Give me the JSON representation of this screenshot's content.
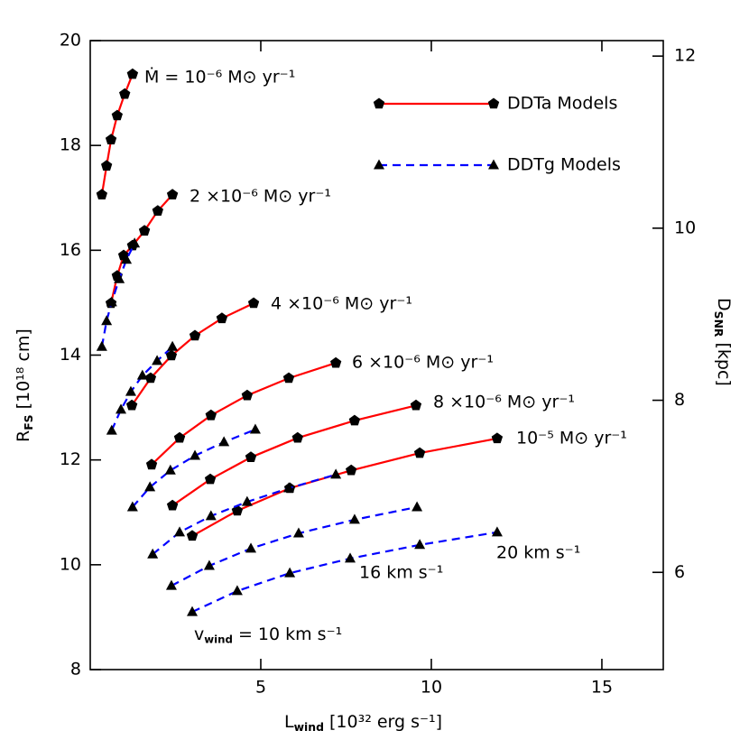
{
  "chart_data": {
    "type": "line",
    "xlabel": {
      "main": "L",
      "sub": "wind",
      "rest": "[10³² erg s⁻¹]"
    },
    "ylabel": {
      "main": "R",
      "sub": "FS",
      "rest": "[10¹⁸ cm]"
    },
    "y2label": {
      "main": "D",
      "sub": "SNR",
      "rest": "[kpc]"
    },
    "xlim": [
      0,
      16.8
    ],
    "xticks": [
      5,
      10,
      15
    ],
    "ylim": [
      8,
      20
    ],
    "yticks": [
      8,
      10,
      12,
      14,
      16,
      18,
      20
    ],
    "y2lim": [
      4.87,
      12.18
    ],
    "y2ticks": [
      6,
      8,
      10,
      12
    ],
    "series": [
      {
        "name": "DDTa Models",
        "color": "#ff0000",
        "marker": "pentagon",
        "dashed": false,
        "curves": [
          {
            "x": [
              0.34,
              0.48,
              0.61,
              0.79,
              1.01,
              1.24
            ],
            "values": [
              17.06,
              17.61,
              18.11,
              18.57,
              18.98,
              19.36
            ]
          },
          {
            "x": [
              0.61,
              0.79,
              0.98,
              1.24,
              1.59,
              1.98,
              2.41
            ],
            "values": [
              14.99,
              15.51,
              15.9,
              16.09,
              16.37,
              16.75,
              17.06
            ]
          },
          {
            "x": [
              1.22,
              1.77,
              2.38,
              3.07,
              3.86,
              4.79
            ],
            "values": [
              13.04,
              13.56,
              13.99,
              14.37,
              14.7,
              14.99
            ]
          },
          {
            "x": [
              1.8,
              2.62,
              3.54,
              4.6,
              5.82,
              7.2
            ],
            "values": [
              11.91,
              12.42,
              12.85,
              13.23,
              13.56,
              13.85
            ]
          },
          {
            "x": [
              2.41,
              3.52,
              4.71,
              6.08,
              7.75,
              9.55
            ],
            "values": [
              11.13,
              11.63,
              12.05,
              12.42,
              12.75,
              13.04
            ]
          },
          {
            "x": [
              2.99,
              4.31,
              5.85,
              7.65,
              9.66,
              11.93
            ],
            "values": [
              10.55,
              11.03,
              11.46,
              11.8,
              12.13,
              12.41
            ]
          }
        ]
      },
      {
        "name": "DDTg Models",
        "color": "#0000ff",
        "marker": "triangle",
        "dashed": true,
        "curves": [
          {
            "x": [
              0.34,
              0.48,
              0.63,
              0.85,
              1.06,
              1.3
            ],
            "values": [
              14.16,
              14.65,
              15.01,
              15.45,
              15.82,
              16.13
            ]
          },
          {
            "x": [
              0.63,
              0.9,
              1.19,
              1.53,
              1.96,
              2.41
            ],
            "values": [
              12.56,
              12.96,
              13.3,
              13.61,
              13.89,
              14.16
            ]
          },
          {
            "x": [
              1.24,
              1.75,
              2.35,
              3.07,
              3.92,
              4.84
            ],
            "values": [
              11.1,
              11.48,
              11.8,
              12.08,
              12.34,
              12.58
            ]
          },
          {
            "x": [
              1.83,
              2.62,
              3.54,
              4.6,
              5.82,
              7.2
            ],
            "values": [
              10.2,
              10.62,
              10.93,
              11.2,
              11.46,
              11.72
            ]
          },
          {
            "x": [
              2.38,
              3.49,
              4.71,
              6.11,
              7.75,
              9.58
            ],
            "values": [
              9.6,
              9.98,
              10.31,
              10.6,
              10.86,
              11.1
            ]
          },
          {
            "x": [
              2.99,
              4.31,
              5.85,
              7.62,
              9.66,
              11.93
            ],
            "values": [
              9.1,
              9.5,
              9.84,
              10.12,
              10.38,
              10.62
            ]
          }
        ]
      }
    ],
    "annotations": [
      "Ṁ = 10⁻⁶ M⊙ yr⁻¹",
      "2 ×10⁻⁶ M⊙ yr⁻¹",
      "4 ×10⁻⁶ M⊙ yr⁻¹",
      "6 ×10⁻⁶ M⊙ yr⁻¹",
      "8 ×10⁻⁶ M⊙ yr⁻¹",
      "10⁻⁵ M⊙ yr⁻¹",
      "20 km s⁻¹",
      "16 km s⁻¹",
      {
        "main": "v",
        "sub": "wind",
        "rest": "= 10 km s⁻¹"
      }
    ]
  }
}
